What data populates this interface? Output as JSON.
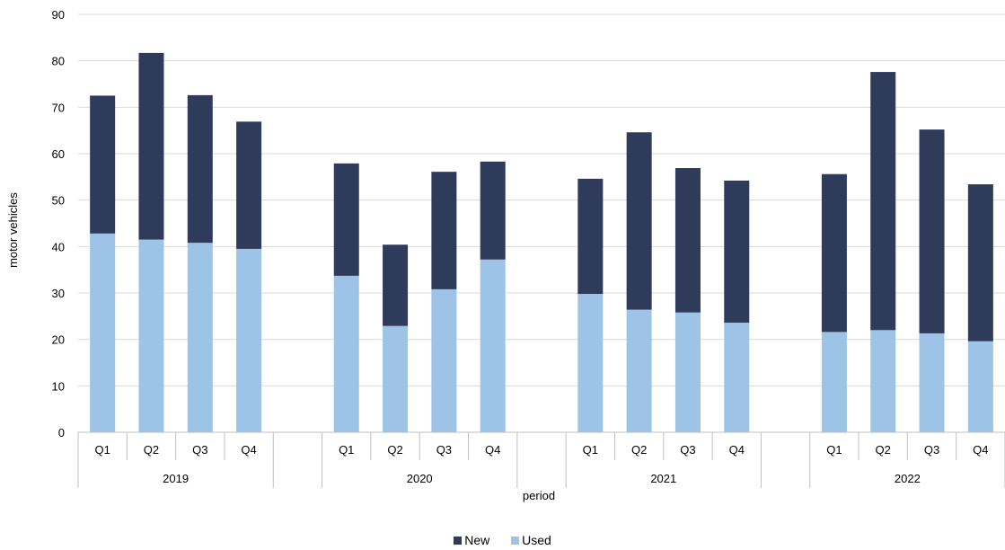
{
  "chart_data": {
    "type": "bar",
    "stacked": true,
    "xlabel": "period",
    "ylabel": "motor vehicles",
    "ylim": [
      0,
      90
    ],
    "yticks": [
      0,
      10,
      20,
      30,
      40,
      50,
      60,
      70,
      80,
      90
    ],
    "grid": true,
    "legend_position": "bottom",
    "groups": [
      "2019",
      "2020",
      "2021",
      "2022"
    ],
    "quarters": [
      "Q1",
      "Q2",
      "Q3",
      "Q4"
    ],
    "series": [
      {
        "name": "Used",
        "color": "#9dc3e6",
        "values": [
          [
            42.8,
            41.5,
            40.8,
            39.5
          ],
          [
            33.7,
            22.9,
            30.8,
            37.2
          ],
          [
            29.8,
            26.4,
            25.8,
            23.6
          ],
          [
            21.6,
            22.0,
            21.3,
            19.6
          ]
        ]
      },
      {
        "name": "New",
        "color": "#2e3b5b",
        "values": [
          [
            29.7,
            40.2,
            31.8,
            27.4
          ],
          [
            24.2,
            17.5,
            25.3,
            21.1
          ],
          [
            24.8,
            38.2,
            31.1,
            30.6
          ],
          [
            34.0,
            55.6,
            43.9,
            33.8
          ]
        ]
      }
    ]
  }
}
